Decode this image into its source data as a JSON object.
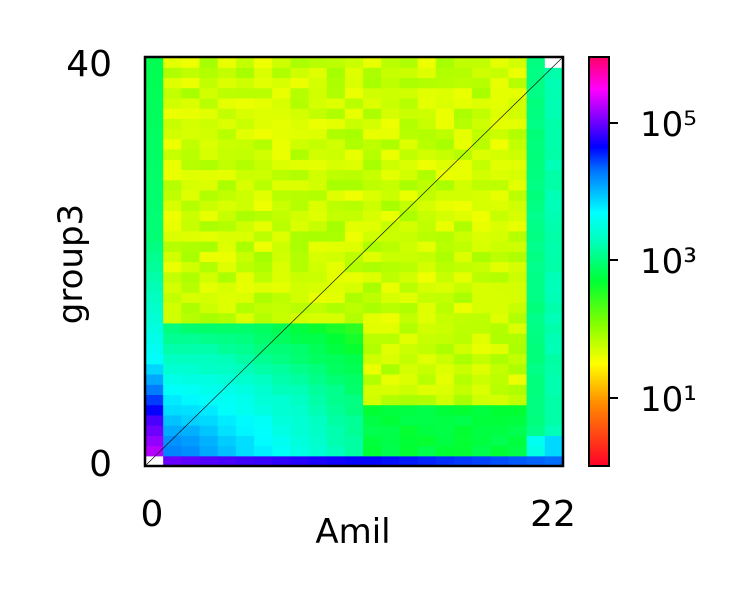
{
  "chart_data": {
    "type": "heatmap",
    "title": "",
    "xlabel": "Amil",
    "ylabel": "group3",
    "x_tick_labels": [
      "0",
      "22"
    ],
    "y_tick_labels": [
      "0",
      "40"
    ],
    "xlim": [
      0,
      22
    ],
    "ylim": [
      0,
      40
    ],
    "x_bins": 23,
    "y_bins": 40,
    "colorbar": {
      "scale": "log",
      "colormap": "gist_rainbow (red → yellow → green → cyan → blue → magenta → pink)",
      "vmin": 1,
      "vmax": 1000000,
      "tick_labels": [
        "10¹",
        "10³",
        "10⁵"
      ]
    },
    "grid": false,
    "diagonal_reference_line": true,
    "description_of_values": {
      "bulk_region": "≈30–80 counts (green) for most cells with x ≥ 1 and y ≥ 12",
      "column_0": "≈1e5–3e5 (pink/magenta) near y=0–4, falling to ≈1e3–5e3 (cyan/blue) near y=10–20 and ≈500–1000 (aquamarine/cyan) near top",
      "row_0": "≈1e5 (magenta) near x=1–5 decreasing to ≈1e4–3e4 (blue/purple) toward x=22",
      "lower_left_block": "≈3e3–2e4 (blue) for x=1–11, y=1–10, decaying with distance from origin",
      "lower_right_block": "≈300–800 (aquamarine) for x=12–20, y=1–6",
      "column_22": "≈1e3–3e3 (cyan/azure) along the right edge",
      "cell_0_0": "empty (no data)",
      "cell_22_39": "empty (no data)"
    }
  }
}
